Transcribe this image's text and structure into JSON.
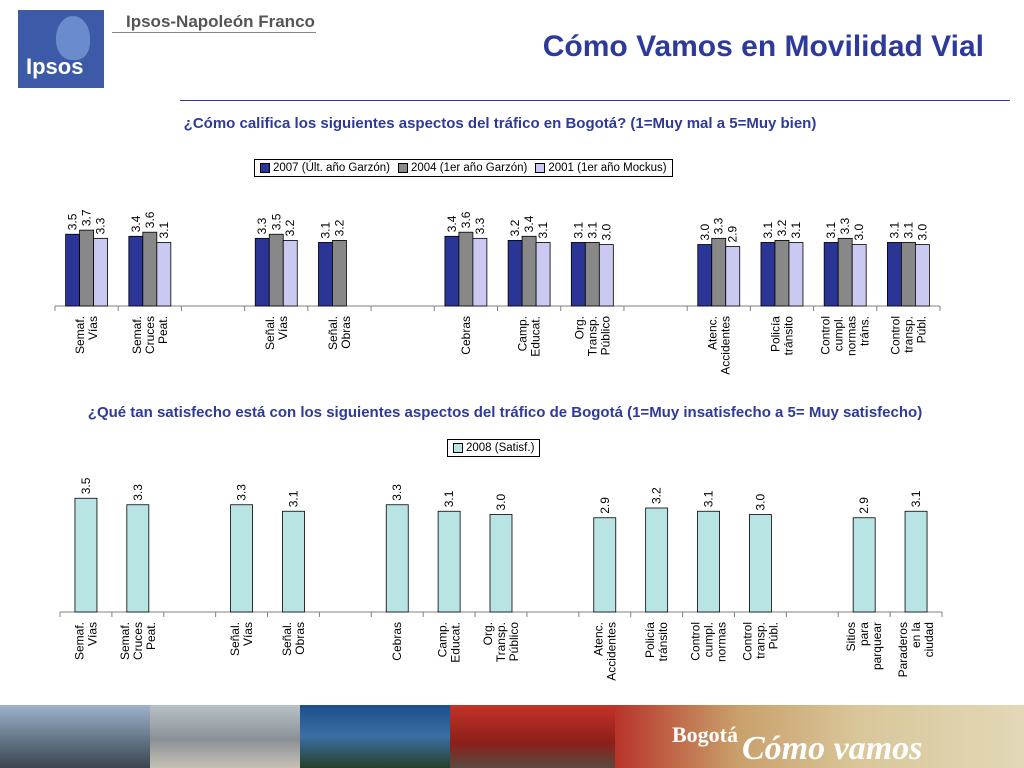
{
  "header": {
    "logo_text": "Ipsos",
    "brand": "Ipsos-Napoleón Franco",
    "title": "Cómo Vamos en Movilidad Vial"
  },
  "colors": {
    "title": "#2e3a9a",
    "series_2007": "#2b3595",
    "series_2004": "#888888",
    "series_2001": "#c9c9f2",
    "series_2008": "#b9e4e4"
  },
  "chart_data": [
    {
      "type": "bar",
      "title": "¿Cómo califica los siguientes aspectos del tráfico en Bogotá? (1=Muy mal a 5=Muy bien)",
      "ylim": [
        0,
        5
      ],
      "grid": false,
      "legend_position": "top",
      "categories": [
        "Semaf. Vías",
        "Semaf. Cruces Peat.",
        "",
        "Señal. Vías",
        "Señal. Obras",
        "",
        "Cebras",
        "Camp. Educat.",
        "Org. Transp. Público",
        "",
        "Atenc. Accidentes",
        "Policía tránsito",
        "Control cumpl. normas tráns.",
        "Control transp. Públ."
      ],
      "series": [
        {
          "name": "2007 (Últ. año Garzón)",
          "values": [
            3.5,
            3.4,
            null,
            3.3,
            3.1,
            null,
            3.4,
            3.2,
            3.1,
            null,
            3.0,
            3.1,
            3.1,
            3.1
          ]
        },
        {
          "name": "2004 (1er año Garzón)",
          "values": [
            3.7,
            3.6,
            null,
            3.5,
            3.2,
            null,
            3.6,
            3.4,
            3.1,
            null,
            3.3,
            3.2,
            3.3,
            3.1
          ]
        },
        {
          "name": "2001 (1er año Mockus)",
          "values": [
            3.3,
            3.1,
            null,
            3.2,
            null,
            null,
            3.3,
            3.1,
            3.0,
            null,
            2.9,
            3.1,
            3.0,
            3.0
          ]
        }
      ]
    },
    {
      "type": "bar",
      "title": "¿Qué tan satisfecho está con los siguientes aspectos del tráfico de Bogotá (1=Muy insatisfecho a 5= Muy satisfecho)",
      "ylim": [
        0,
        5
      ],
      "grid": false,
      "legend_position": "top",
      "categories": [
        "Semaf. Vías",
        "Semaf. Cruces Peat.",
        "",
        "Señal. Vías",
        "Señal. Obras",
        "",
        "Cebras",
        "Camp. Educat.",
        "Org. Transp. Público",
        "",
        "Atenc. Accidentes",
        "Policía tránsito",
        "Control cumpl. normas",
        "Control transp. Públ.",
        "",
        "Sitios para parquear",
        "Paraderos en la ciudad"
      ],
      "series": [
        {
          "name": "2008 (Satisf.)",
          "values": [
            3.5,
            3.3,
            null,
            3.3,
            3.1,
            null,
            3.3,
            3.1,
            3.0,
            null,
            2.9,
            3.2,
            3.1,
            3.0,
            null,
            2.9,
            3.1
          ]
        }
      ]
    }
  ],
  "footer": {
    "photo_label_1": "Bogotá",
    "photo_label_2": "Cómo vamos"
  }
}
